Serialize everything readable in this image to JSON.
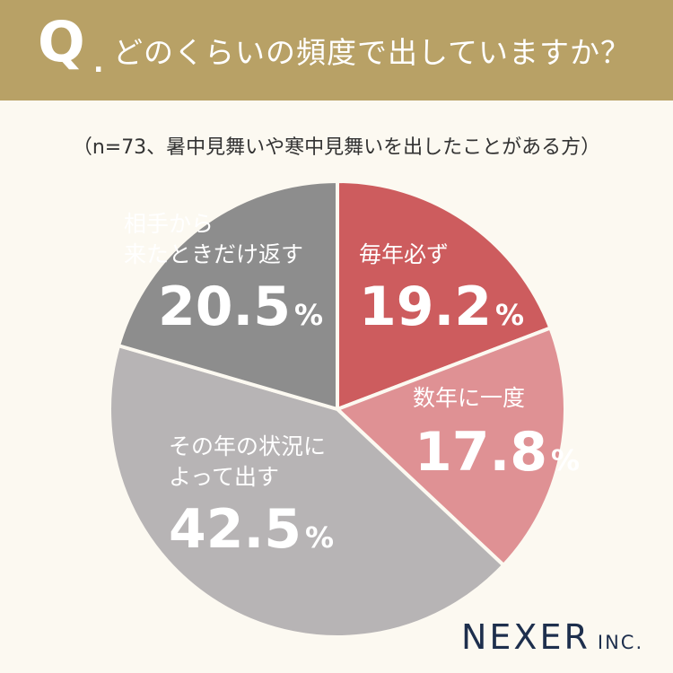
{
  "header": {
    "q_letter": "Q",
    "q_dot": ".",
    "question": "どのくらいの頻度で出していますか？"
  },
  "subtitle": "（n=73、暑中見舞いや寒中見舞いを出したことがある方）",
  "brand": {
    "main": "NEXER",
    "sub": "INC."
  },
  "colors": {
    "header_bg": "#b8a166",
    "page_bg": "#fcf9f1",
    "brand": "#1e2f4d"
  },
  "chart_data": {
    "type": "pie",
    "unit": "%",
    "start": "top",
    "direction": "clockwise",
    "slices": [
      {
        "label_lines": [
          "毎年必ず"
        ],
        "value": 19.2,
        "value_text": "19.2",
        "color": "#cd5c5e"
      },
      {
        "label_lines": [
          "数年に一度"
        ],
        "value": 17.8,
        "value_text": "17.8",
        "color": "#df9194"
      },
      {
        "label_lines": [
          "その年の状況に",
          "よって出す"
        ],
        "value": 42.5,
        "value_text": "42.5",
        "color": "#b7b4b5"
      },
      {
        "label_lines": [
          "相手から",
          "来たときだけ返す"
        ],
        "value": 20.5,
        "value_text": "20.5",
        "color": "#8d8d8d"
      }
    ]
  }
}
